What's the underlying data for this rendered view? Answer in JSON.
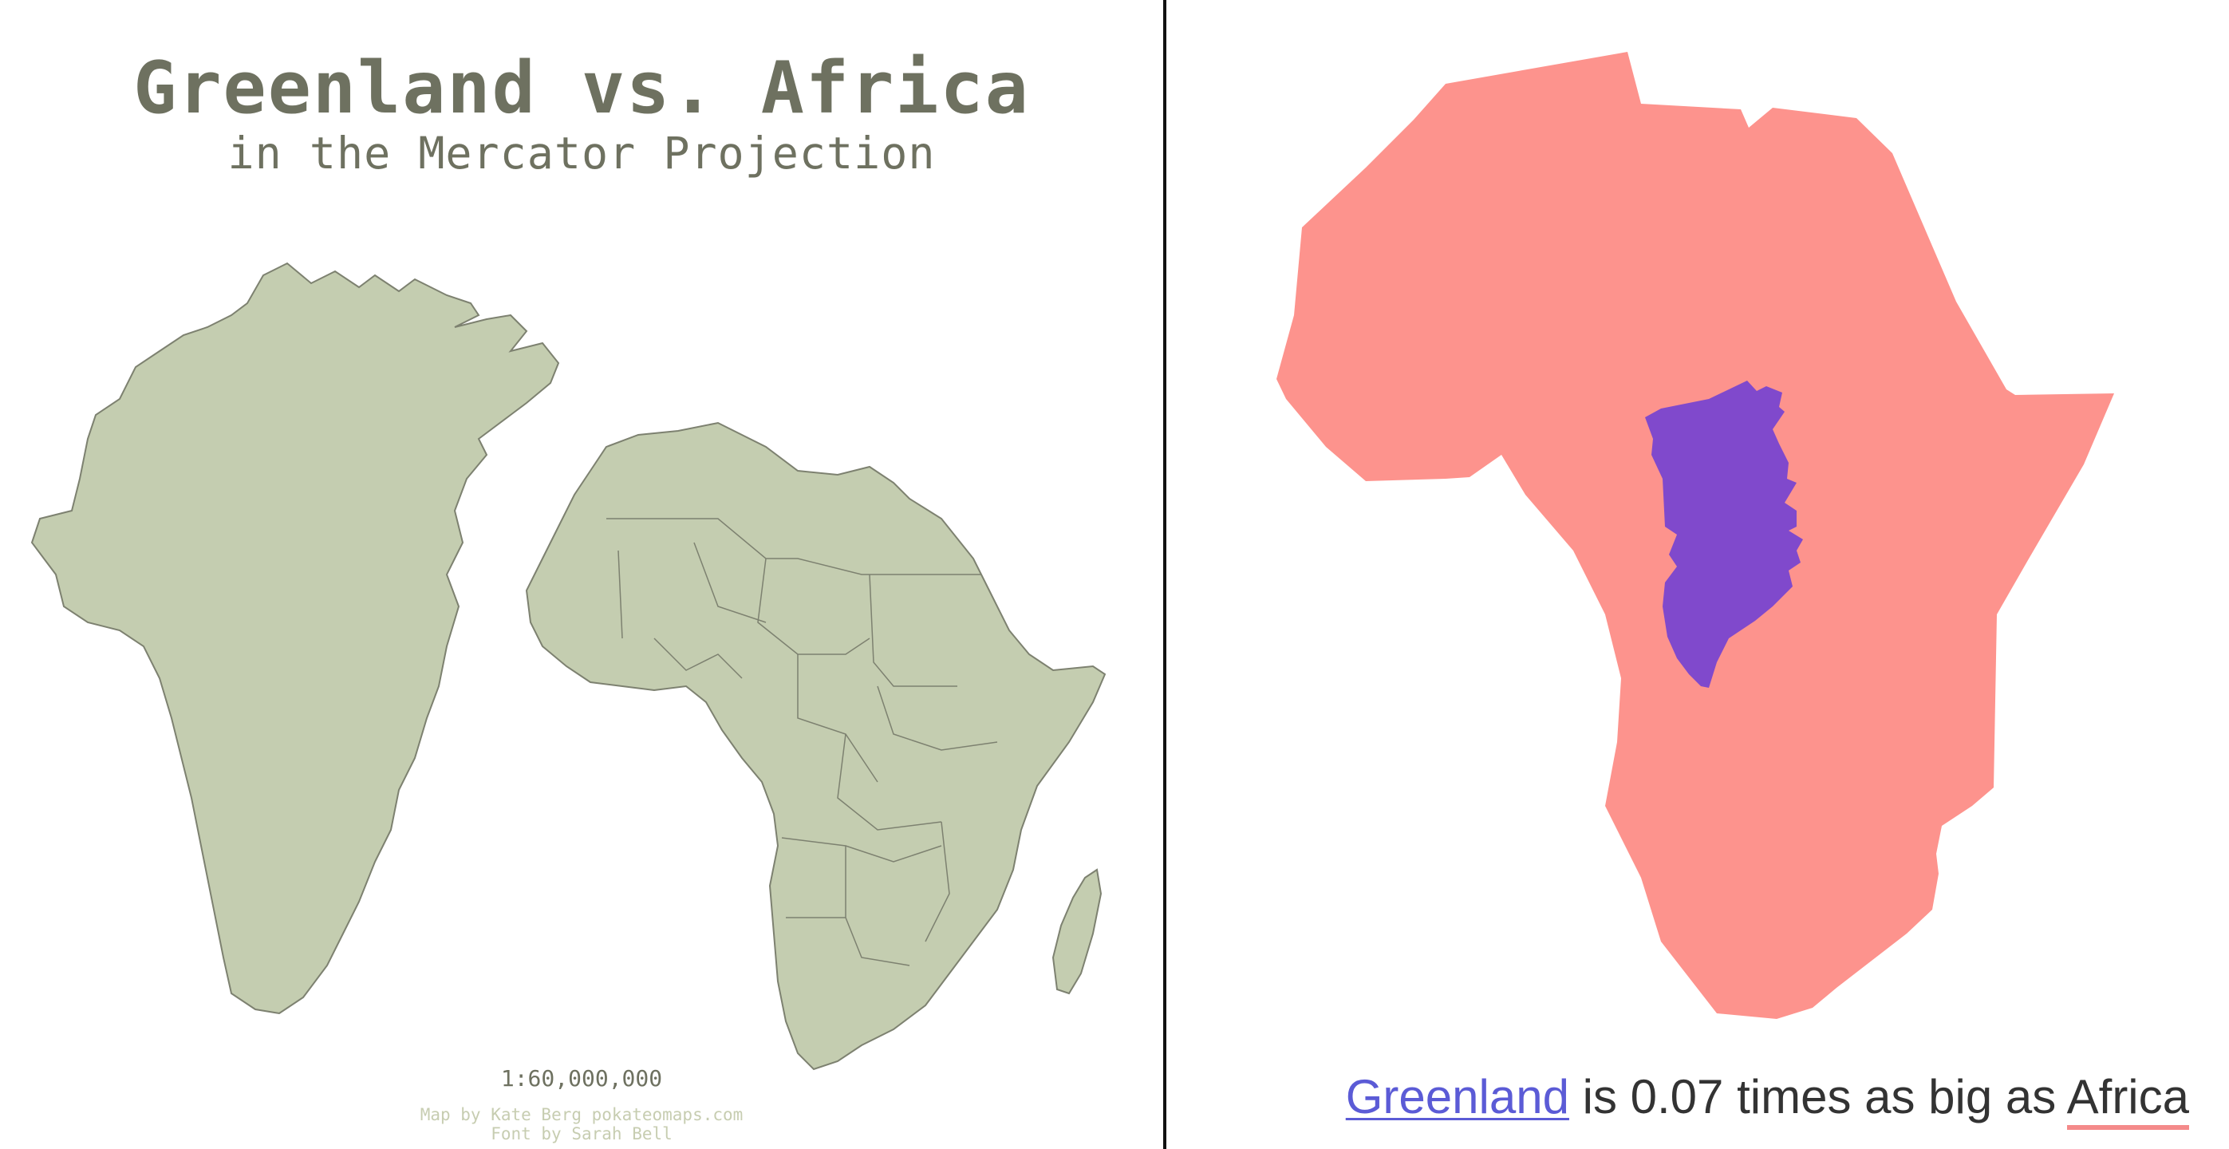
{
  "left": {
    "title": "Greenland vs. Africa",
    "subtitle": "in the Mercator Projection",
    "scale": "1:60,000,000",
    "credit_map": "Map by Kate Berg pokateomaps.com",
    "credit_font": "Font by Sarah Bell",
    "land_color": "#c4cdb0",
    "border_color": "#7d8170"
  },
  "right": {
    "caption": {
      "greenland": "Greenland",
      "is": "is",
      "ratio": "0.07",
      "times": "times as big as",
      "africa": "Africa"
    },
    "africa_color": "#fd938d",
    "greenland_color": "#8049cc"
  }
}
